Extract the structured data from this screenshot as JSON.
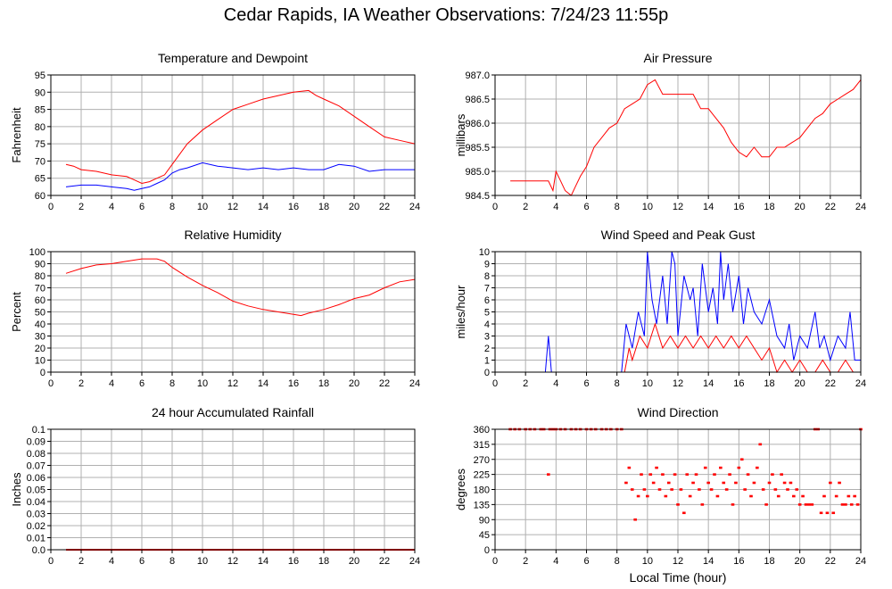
{
  "page_title": "Cedar Rapids, IA Weather Observations: 7/24/23 11:55p",
  "x_axis_label": "Local Time (hour)",
  "chart_data": [
    {
      "id": "temp",
      "type": "line",
      "title": "Temperature and Dewpoint",
      "ylabel": "Fahrenheit",
      "ylim": [
        60,
        95
      ],
      "yticks": [
        60,
        65,
        70,
        75,
        80,
        85,
        90,
        95
      ],
      "xlim": [
        0,
        24
      ],
      "xticks": [
        0,
        2,
        4,
        6,
        8,
        10,
        12,
        14,
        16,
        18,
        20,
        22,
        24
      ],
      "grid": true,
      "series": [
        {
          "color": "#ff0000",
          "x": [
            1,
            1.5,
            2,
            3,
            4,
            5,
            5.5,
            6,
            6.5,
            7,
            7.5,
            8,
            8.5,
            9,
            10,
            11,
            12,
            13,
            14,
            15,
            16,
            17,
            17.5,
            18,
            19,
            20,
            21,
            22,
            23,
            24
          ],
          "y": [
            69,
            68.5,
            67.5,
            67,
            66,
            65.5,
            64.5,
            63.5,
            64,
            65,
            66,
            69,
            72,
            75,
            79,
            82,
            85,
            86.5,
            88,
            89,
            90,
            90.5,
            89,
            88,
            86,
            83,
            80,
            77,
            76,
            75
          ]
        },
        {
          "color": "#0000ff",
          "x": [
            1,
            2,
            3,
            4,
            5,
            5.5,
            6,
            6.5,
            7,
            7.5,
            8,
            8.5,
            9,
            10,
            11,
            12,
            13,
            14,
            15,
            16,
            17,
            18,
            19,
            20,
            21,
            22,
            23,
            24
          ],
          "y": [
            62.5,
            63,
            63,
            62.5,
            62,
            61.5,
            62,
            62.5,
            63.5,
            64.5,
            66.5,
            67.5,
            68,
            69.5,
            68.5,
            68,
            67.5,
            68,
            67.5,
            68,
            67.5,
            67.5,
            69,
            68.5,
            67,
            67.5,
            67.5,
            67.5
          ]
        }
      ]
    },
    {
      "id": "pressure",
      "type": "line",
      "title": "Air Pressure",
      "ylabel": "millibars",
      "ylim": [
        984.5,
        987.0
      ],
      "yticks": [
        984.5,
        985.0,
        985.5,
        986.0,
        986.5,
        987.0
      ],
      "ytick_labels": [
        "984.5",
        "985.0",
        "985.5",
        "986.0",
        "986.5",
        "987.0"
      ],
      "xlim": [
        0,
        24
      ],
      "xticks": [
        0,
        2,
        4,
        6,
        8,
        10,
        12,
        14,
        16,
        18,
        20,
        22,
        24
      ],
      "grid": true,
      "series": [
        {
          "color": "#ff0000",
          "x": [
            1,
            1.5,
            2,
            2.5,
            3,
            3.5,
            3.8,
            4,
            4.3,
            4.6,
            5,
            5.3,
            5.6,
            6,
            6.5,
            7,
            7.5,
            8,
            8.5,
            9,
            9.5,
            10,
            10.5,
            11,
            12,
            13,
            13.5,
            14,
            14.5,
            15,
            15.5,
            16,
            16.5,
            17,
            17.5,
            18,
            18.5,
            19,
            19.5,
            20,
            20.5,
            21,
            21.5,
            22,
            22.5,
            23,
            23.5,
            24
          ],
          "y": [
            984.8,
            984.8,
            984.8,
            984.8,
            984.8,
            984.8,
            984.6,
            985.0,
            984.8,
            984.6,
            984.5,
            984.7,
            984.9,
            985.1,
            985.5,
            985.7,
            985.9,
            986.0,
            986.3,
            986.4,
            986.5,
            986.8,
            986.9,
            986.6,
            986.6,
            986.6,
            986.3,
            986.3,
            986.1,
            985.9,
            985.6,
            985.4,
            985.3,
            985.5,
            985.3,
            985.3,
            985.5,
            985.5,
            985.6,
            985.7,
            985.9,
            986.1,
            986.2,
            986.4,
            986.5,
            986.6,
            986.7,
            986.9
          ]
        }
      ]
    },
    {
      "id": "rh",
      "type": "line",
      "title": "Relative Humidity",
      "ylabel": "Percent",
      "ylim": [
        0,
        100
      ],
      "yticks": [
        0,
        10,
        20,
        30,
        40,
        50,
        60,
        70,
        80,
        90,
        100
      ],
      "xlim": [
        0,
        24
      ],
      "xticks": [
        0,
        2,
        4,
        6,
        8,
        10,
        12,
        14,
        16,
        18,
        20,
        22,
        24
      ],
      "grid": true,
      "series": [
        {
          "color": "#ff0000",
          "x": [
            1,
            2,
            3,
            4,
            5,
            6,
            7,
            7.5,
            8,
            9,
            10,
            11,
            12,
            13,
            14,
            15,
            16,
            16.5,
            17,
            18,
            19,
            20,
            21,
            22,
            23,
            24
          ],
          "y": [
            82,
            86,
            89,
            90,
            92,
            94,
            94,
            92,
            87,
            79,
            72,
            66,
            59,
            55,
            52,
            50,
            48,
            47,
            49,
            52,
            56,
            61,
            64,
            70,
            75,
            77
          ]
        }
      ]
    },
    {
      "id": "wind",
      "type": "line",
      "title": "Wind Speed and Peak Gust",
      "ylabel": "miles/hour",
      "ylim": [
        0,
        10
      ],
      "yticks": [
        0,
        1,
        2,
        3,
        4,
        5,
        6,
        7,
        8,
        9,
        10
      ],
      "xlim": [
        0,
        24
      ],
      "xticks": [
        0,
        2,
        4,
        6,
        8,
        10,
        12,
        14,
        16,
        18,
        20,
        22,
        24
      ],
      "grid": true,
      "series": [
        {
          "color": "#0000ff",
          "x": [
            1,
            3.3,
            3.5,
            3.7,
            8.3,
            8.6,
            9,
            9.4,
            9.8,
            10,
            10.3,
            10.6,
            11,
            11.3,
            11.6,
            11.8,
            12,
            12.4,
            12.8,
            13,
            13.3,
            13.6,
            14,
            14.3,
            14.6,
            14.8,
            15,
            15.3,
            15.6,
            16,
            16.3,
            16.6,
            17,
            17.5,
            18,
            18.5,
            19,
            19.3,
            19.6,
            20,
            20.5,
            21,
            21.3,
            21.6,
            22,
            22.5,
            23,
            23.3,
            23.6,
            24
          ],
          "y": [
            0,
            0,
            3,
            0,
            0,
            4,
            2,
            5,
            3,
            10,
            6,
            4,
            8,
            4,
            10,
            9,
            3,
            8,
            6,
            7,
            3,
            9,
            5,
            7,
            4,
            10,
            6,
            9,
            5,
            8,
            4,
            7,
            5,
            4,
            6,
            3,
            2,
            4,
            1,
            3,
            2,
            5,
            2,
            3,
            1,
            3,
            2,
            5,
            1,
            1
          ]
        },
        {
          "color": "#ff0000",
          "x": [
            1,
            8.5,
            8.8,
            9,
            9.5,
            10,
            10.5,
            11,
            11.5,
            12,
            12.5,
            13,
            13.5,
            14,
            14.5,
            15,
            15.5,
            16,
            16.5,
            17,
            17.5,
            18,
            18.5,
            19,
            19.5,
            20,
            20.5,
            21,
            21.5,
            22,
            22.5,
            23,
            23.5,
            24
          ],
          "y": [
            0,
            0,
            2,
            1,
            3,
            2,
            4,
            2,
            3,
            2,
            3,
            2,
            3,
            2,
            3,
            2,
            3,
            2,
            3,
            2,
            1,
            2,
            0,
            1,
            0,
            1,
            0,
            0,
            1,
            0,
            0,
            1,
            0,
            0
          ]
        }
      ]
    },
    {
      "id": "rain",
      "type": "line",
      "title": "24 hour Accumulated Rainfall",
      "ylabel": "Inches",
      "ylim": [
        0,
        0.1
      ],
      "yticks": [
        0,
        0.01,
        0.02,
        0.03,
        0.04,
        0.05,
        0.06,
        0.07,
        0.08,
        0.09,
        0.1
      ],
      "ytick_labels": [
        "0.0",
        "0.01",
        "0.02",
        "0.03",
        "0.04",
        "0.05",
        "0.06",
        "0.07",
        "0.08",
        "0.09",
        "0.1"
      ],
      "xlim": [
        0,
        24
      ],
      "xticks": [
        0,
        2,
        4,
        6,
        8,
        10,
        12,
        14,
        16,
        18,
        20,
        22,
        24
      ],
      "grid": true,
      "series": [
        {
          "color": "#ff0000",
          "x": [
            1,
            24
          ],
          "y": [
            0,
            0
          ]
        }
      ]
    },
    {
      "id": "winddir",
      "type": "scatter",
      "title": "Wind Direction",
      "ylabel": "degrees",
      "ylim": [
        0,
        360
      ],
      "yticks": [
        0,
        45,
        90,
        135,
        180,
        225,
        270,
        315,
        360
      ],
      "xlim": [
        0,
        24
      ],
      "xticks": [
        0,
        2,
        4,
        6,
        8,
        10,
        12,
        14,
        16,
        18,
        20,
        22,
        24
      ],
      "grid": true,
      "series": [
        {
          "color": "#ff0000",
          "x": [
            1,
            1.3,
            1.6,
            2,
            2.3,
            2.6,
            3,
            3.2,
            3.5,
            3.6,
            3.8,
            4,
            4.3,
            4.6,
            5,
            5.3,
            5.6,
            6,
            6.3,
            6.6,
            7,
            7.3,
            7.6,
            8,
            8.3,
            8.6,
            8.8,
            9,
            9.2,
            9.4,
            9.6,
            9.8,
            10,
            10.2,
            10.4,
            10.6,
            10.8,
            11,
            11.2,
            11.4,
            11.6,
            11.8,
            12,
            12.2,
            12.4,
            12.6,
            12.8,
            13,
            13.2,
            13.4,
            13.6,
            13.8,
            14,
            14.2,
            14.4,
            14.6,
            14.8,
            15,
            15.2,
            15.4,
            15.6,
            15.8,
            16,
            16.2,
            16.4,
            16.6,
            16.8,
            17,
            17.2,
            17.4,
            17.6,
            17.8,
            18,
            18.2,
            18.4,
            18.6,
            18.8,
            19,
            19.2,
            19.4,
            19.6,
            19.8,
            20,
            20.2,
            20.4,
            20.6,
            20.8,
            21,
            21.2,
            21.4,
            21.6,
            21.8,
            22,
            22.2,
            22.4,
            22.6,
            22.8,
            23,
            23.2,
            23.4,
            23.6,
            23.8,
            24
          ],
          "y": [
            360,
            360,
            360,
            360,
            360,
            360,
            360,
            360,
            225,
            360,
            360,
            360,
            360,
            360,
            360,
            360,
            360,
            360,
            360,
            360,
            360,
            360,
            360,
            360,
            360,
            200,
            245,
            180,
            90,
            160,
            225,
            180,
            160,
            225,
            200,
            245,
            180,
            225,
            160,
            200,
            180,
            225,
            135,
            180,
            110,
            225,
            160,
            200,
            225,
            180,
            135,
            245,
            200,
            180,
            225,
            160,
            245,
            200,
            180,
            225,
            135,
            200,
            245,
            270,
            180,
            225,
            160,
            200,
            245,
            315,
            180,
            135,
            200,
            225,
            180,
            160,
            225,
            200,
            180,
            200,
            160,
            180,
            135,
            160,
            135,
            135,
            135,
            360,
            360,
            110,
            160,
            110,
            200,
            110,
            160,
            200,
            135,
            135,
            160,
            135,
            160,
            135,
            360
          ]
        }
      ]
    }
  ]
}
